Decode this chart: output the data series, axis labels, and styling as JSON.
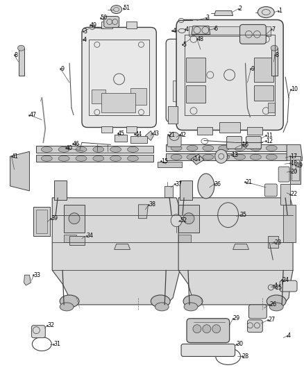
{
  "bg_color": "#ffffff",
  "line_color": "#404040",
  "label_color": "#000000",
  "fig_width": 4.38,
  "fig_height": 5.33,
  "dpi": 100
}
